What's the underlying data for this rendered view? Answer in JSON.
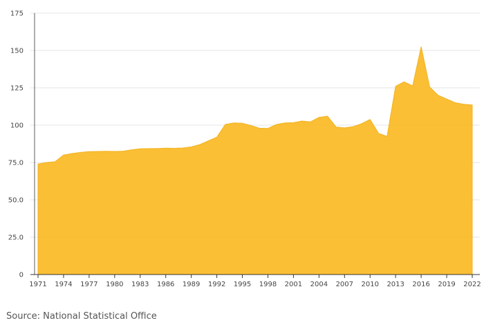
{
  "chart_data": {
    "type": "area",
    "title": "",
    "xlabel": "",
    "ylabel": "",
    "ylim": [
      0,
      175
    ],
    "grid": true,
    "color": "#FABC2A",
    "y_ticks": [
      {
        "value": 0,
        "label": "0"
      },
      {
        "value": 25,
        "label": "25.0"
      },
      {
        "value": 50,
        "label": "50.0"
      },
      {
        "value": 75,
        "label": "75.0"
      },
      {
        "value": 100,
        "label": "100"
      },
      {
        "value": 125,
        "label": "125"
      },
      {
        "value": 150,
        "label": "150"
      },
      {
        "value": 175,
        "label": "175"
      }
    ],
    "x_tick_labels": [
      "1971",
      "1974",
      "1977",
      "1980",
      "1983",
      "1986",
      "1989",
      "1992",
      "1995",
      "1998",
      "2001",
      "2004",
      "2007",
      "2010",
      "2013",
      "2016",
      "2019",
      "2022"
    ],
    "x": [
      1971,
      1972,
      1973,
      1974,
      1975,
      1976,
      1977,
      1978,
      1979,
      1980,
      1981,
      1982,
      1983,
      1984,
      1985,
      1986,
      1987,
      1988,
      1989,
      1990,
      1991,
      1992,
      1993,
      1994,
      1995,
      1996,
      1997,
      1998,
      1999,
      2000,
      2001,
      2002,
      2003,
      2004,
      2005,
      2006,
      2007,
      2008,
      2009,
      2010,
      2011,
      2012,
      2013,
      2014,
      2015,
      2016,
      2017,
      2018,
      2019,
      2020,
      2021,
      2022
    ],
    "values": [
      74,
      75,
      75.5,
      80,
      81,
      81.8,
      82.3,
      82.4,
      82.5,
      82.4,
      82.6,
      83.5,
      84.2,
      84.3,
      84.4,
      84.6,
      84.5,
      84.7,
      85.5,
      87,
      89.5,
      92,
      100.5,
      101.5,
      101.3,
      99.8,
      98,
      97.8,
      100.5,
      101.5,
      101.7,
      102.8,
      102.2,
      105.2,
      106,
      98.8,
      98.2,
      99,
      101,
      103.8,
      94.5,
      92.5,
      126,
      129,
      126.3,
      152.5,
      125.5,
      120,
      117.5,
      115,
      114,
      113.5
    ],
    "series_name": ""
  },
  "source": "Source: National Statistical Office"
}
